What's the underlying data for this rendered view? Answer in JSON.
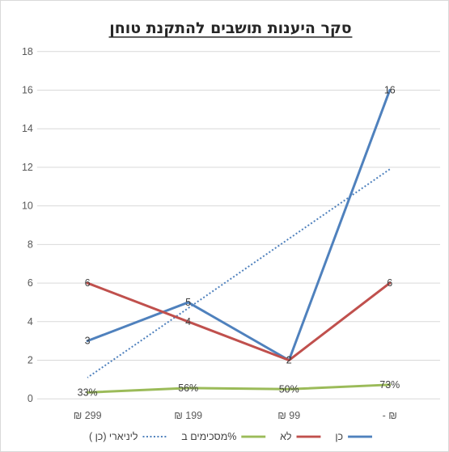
{
  "chart_data": {
    "type": "line",
    "title": "סקר היענות תושבים להתקנת טוחן",
    "xlabel": "",
    "ylabel": "",
    "categories": [
      "- ₪",
      "₪ 99",
      "₪ 199",
      "₪ 299"
    ],
    "ylim": [
      0,
      18
    ],
    "yticks": [
      "0",
      "2",
      "4",
      "6",
      "8",
      "10",
      "12",
      "14",
      "16",
      "18"
    ],
    "grid": true,
    "legend_position": "bottom",
    "series": [
      {
        "name": "כן",
        "values": [
          16,
          2,
          5,
          3
        ],
        "labels": [
          "16",
          "2",
          "5",
          "3"
        ],
        "color": "#4f81bd"
      },
      {
        "name": "לא",
        "values": [
          6,
          2,
          4,
          6
        ],
        "labels": [
          "6",
          "2",
          "4",
          "6"
        ],
        "color": "#c0504d"
      },
      {
        "name": "מסכימים ב%",
        "values": [
          0.73,
          0.5,
          0.56,
          0.33
        ],
        "labels": [
          "73%",
          "50%",
          "56%",
          "33%"
        ],
        "color": "#9bbb59"
      }
    ],
    "trendline": {
      "name": "ליניארי (כן )",
      "of_series": "כן",
      "type": "linear",
      "color": "#4f81bd",
      "dashed": true
    }
  }
}
